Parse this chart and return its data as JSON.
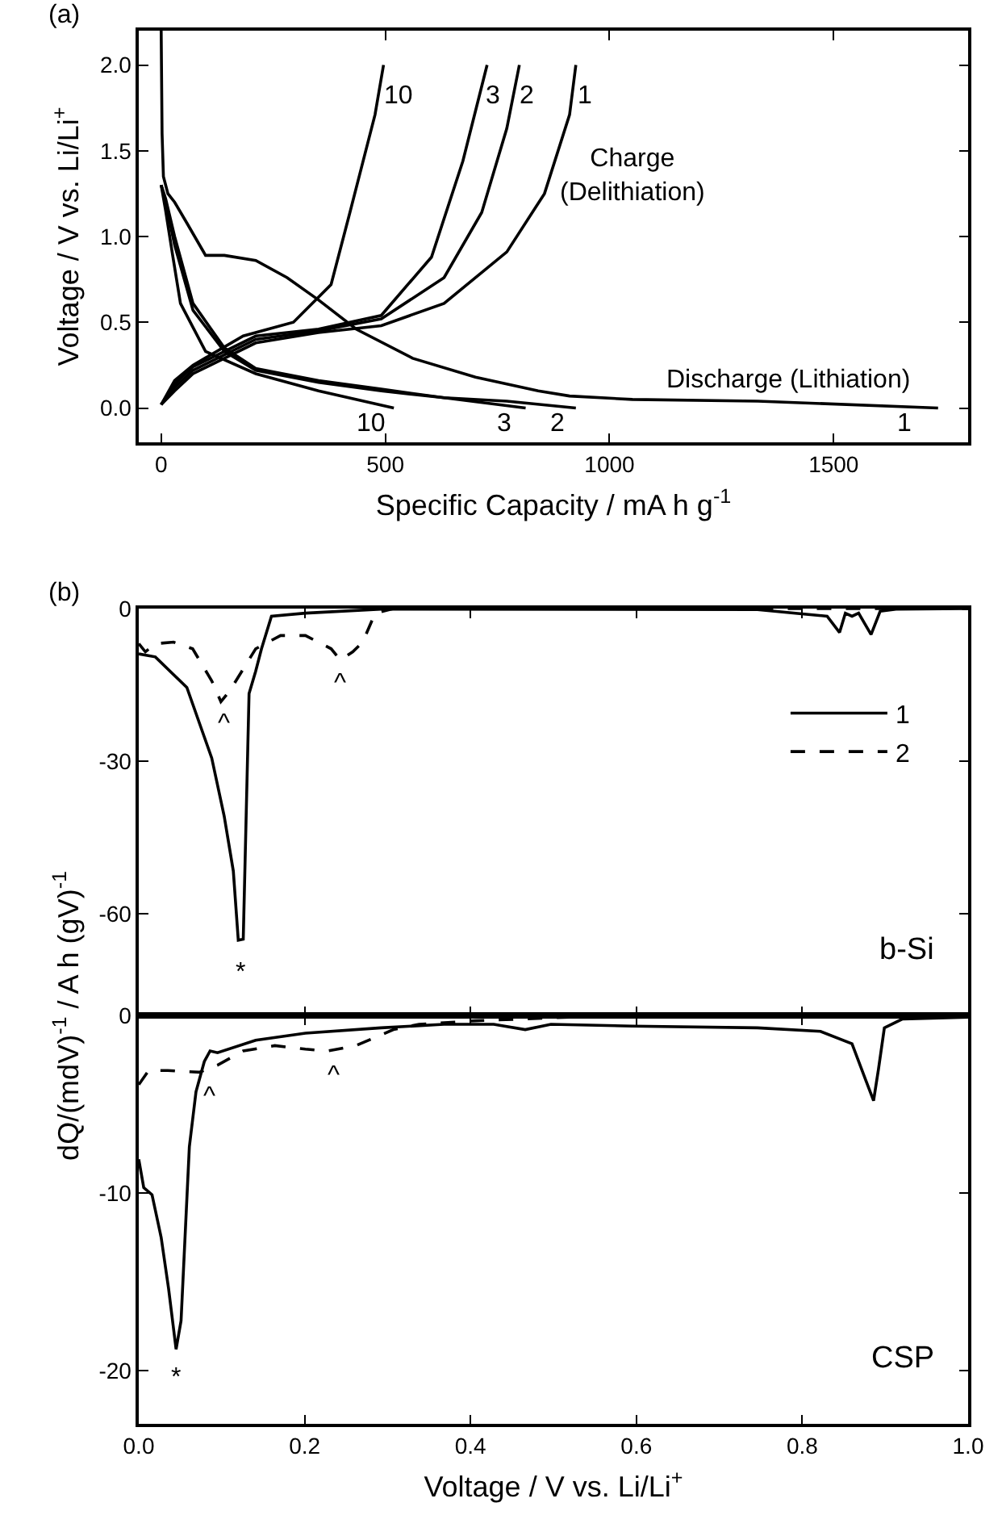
{
  "chart_data": [
    {
      "type": "line",
      "xlabel": "Specific Capacity / mA h g$^{-1}$",
      "ylabel": "Voltage / V vs. Li/Li$^{+}$",
      "xlim": [
        -50,
        1800
      ],
      "ylim": [
        -0.2,
        2.2
      ],
      "xticks": [
        0,
        500,
        1000,
        1500
      ],
      "yticks": [
        {
          "value": 0,
          "label": "0.0"
        },
        {
          "value": 0.5,
          "label": "0.5"
        },
        {
          "value": 1,
          "label": "1.0"
        },
        {
          "value": 1.5,
          "label": "1.5"
        },
        {
          "value": 2,
          "label": "2.0"
        }
      ],
      "legend": false,
      "marker": "none",
      "line_style": "solid",
      "series": [
        {
          "color": "#000000",
          "x": [
            0,
            2,
            5,
            15,
            30,
            57,
            99,
            141,
            211,
            281,
            351,
            435,
            561,
            701,
            841,
            911,
            1051,
            1331,
            1733
          ],
          "values": [
            2.2,
            1.6,
            1.35,
            1.25,
            1.2,
            1.08,
            0.89,
            0.89,
            0.86,
            0.76,
            0.63,
            0.46,
            0.29,
            0.18,
            0.1,
            0.07,
            0.05,
            0.04,
            0.0
          ]
        },
        {
          "color": "#000000",
          "x": [
            0,
            10,
            30,
            71,
            141,
            211,
            351,
            491,
            631,
            771,
            925
          ],
          "values": [
            1.3,
            1.22,
            1.0,
            0.61,
            0.35,
            0.23,
            0.16,
            0.11,
            0.06,
            0.04,
            0.0
          ]
        },
        {
          "color": "#000000",
          "x": [
            0,
            10,
            30,
            71,
            141,
            211,
            351,
            491,
            631,
            813
          ],
          "values": [
            1.3,
            1.2,
            0.95,
            0.57,
            0.33,
            0.22,
            0.15,
            0.1,
            0.06,
            0.0
          ]
        },
        {
          "color": "#000000",
          "x": [
            0,
            10,
            25,
            43,
            99,
            211,
            351,
            519
          ],
          "values": [
            1.3,
            1.15,
            0.9,
            0.61,
            0.33,
            0.2,
            0.1,
            0.0
          ]
        },
        {
          "color": "#000000",
          "x": [
            0,
            30,
            71,
            211,
            351,
            491,
            631,
            771,
            855,
            911,
            925
          ],
          "values": [
            0.02,
            0.1,
            0.2,
            0.38,
            0.44,
            0.48,
            0.61,
            0.91,
            1.25,
            1.71,
            2.0
          ]
        },
        {
          "color": "#000000",
          "x": [
            0,
            30,
            71,
            211,
            351,
            491,
            631,
            715,
            771,
            799
          ],
          "values": [
            0.02,
            0.12,
            0.22,
            0.4,
            0.45,
            0.52,
            0.76,
            1.14,
            1.63,
            2.0
          ]
        },
        {
          "color": "#000000",
          "x": [
            0,
            30,
            71,
            211,
            351,
            491,
            603,
            673,
            727
          ],
          "values": [
            0.02,
            0.14,
            0.24,
            0.42,
            0.46,
            0.54,
            0.88,
            1.44,
            2.0
          ]
        },
        {
          "color": "#000000",
          "x": [
            0,
            30,
            71,
            183,
            295,
            379,
            421,
            477,
            496
          ],
          "values": [
            0.02,
            0.16,
            0.25,
            0.42,
            0.5,
            0.72,
            1.14,
            1.71,
            2.0
          ]
        }
      ],
      "annotations": [
        "(a)",
        "10",
        "3",
        "2",
        "1",
        "10",
        "3",
        "2",
        "1",
        "Charge\n(Delithiation)",
        "Discharge (Lithiation)"
      ]
    },
    {
      "type": "line",
      "ylabel": "dQ/(mdV)$^{-1}$ / A h (gV)$^{-1}$",
      "xlim": [
        0,
        1
      ],
      "ylim": [
        -80,
        0
      ],
      "xticks": [
        {
          "value": 0,
          "label": null
        },
        {
          "value": 0.2,
          "label": null
        },
        {
          "value": 0.4,
          "label": null
        },
        {
          "value": 0.6,
          "label": null
        },
        {
          "value": 0.8,
          "label": null
        },
        {
          "value": 1,
          "label": null
        }
      ],
      "yticks": [
        0,
        -30,
        -60
      ],
      "tick_labels": "y",
      "legend": "top right",
      "marker": "none",
      "series": [
        {
          "name": "1",
          "color": "#000000",
          "line_style": "solid",
          "x": [
            0,
            0.02,
            0.058,
            0.088,
            0.103,
            0.114,
            0.12,
            0.126,
            0.133,
            0.141,
            0.148,
            0.16,
            0.201,
            0.292,
            0.746,
            0.83,
            0.845,
            0.852,
            0.86,
            0.868,
            0.883,
            0.894,
            0.913,
            1.0
          ],
          "values": [
            -8.9,
            -9.5,
            -15.5,
            -29.4,
            -40.8,
            -51.6,
            -65.2,
            -65,
            -16.7,
            -12.3,
            -7.9,
            -1.5,
            -0.9,
            -0.1,
            -0.2,
            -1.5,
            -4.7,
            -0.9,
            -1.5,
            -0.9,
            -5.1,
            -0.5,
            -0.1,
            0
          ]
        },
        {
          "name": "2",
          "color": "#000000",
          "line_style": "dashed",
          "x": [
            0,
            0.008,
            0.02,
            0.042,
            0.065,
            0.088,
            0.099,
            0.11,
            0.141,
            0.171,
            0.201,
            0.232,
            0.243,
            0.258,
            0.27,
            0.285,
            0.307,
            1.0
          ],
          "values": [
            -6.9,
            -8.5,
            -6.9,
            -6.6,
            -7.9,
            -14.2,
            -18.3,
            -16.1,
            -7.9,
            -5.3,
            -5.3,
            -7.9,
            -10.1,
            -8.5,
            -6.6,
            -0.9,
            0,
            0
          ]
        }
      ],
      "annotations": [
        "(b)",
        "b-Si",
        "^",
        "^",
        "*"
      ]
    },
    {
      "type": "line",
      "xlabel": "Voltage / V vs. Li/Li$^{+}$",
      "xlim": [
        0,
        1
      ],
      "ylim": [
        -23,
        0
      ],
      "xticks": [
        {
          "value": 0,
          "label": "0.0"
        },
        {
          "value": 0.2,
          "label": "0.2"
        },
        {
          "value": 0.4,
          "label": "0.4"
        },
        {
          "value": 0.6,
          "label": "0.6"
        },
        {
          "value": 0.8,
          "label": "0.8"
        },
        {
          "value": 1,
          "label": "1.0"
        }
      ],
      "yticks": [
        0,
        -10,
        -20
      ],
      "legend": false,
      "marker": "none",
      "series": [
        {
          "color": "#000000",
          "line_style": "solid",
          "x": [
            0,
            0.006,
            0.016,
            0.027,
            0.036,
            0.045,
            0.051,
            0.061,
            0.069,
            0.079,
            0.086,
            0.095,
            0.141,
            0.201,
            0.292,
            0.368,
            0.428,
            0.466,
            0.497,
            0.595,
            0.746,
            0.822,
            0.86,
            0.877,
            0.886,
            0.892,
            0.899,
            0.921,
            1.0
          ],
          "values": [
            -8.1,
            -9.7,
            -10.1,
            -12.5,
            -15.4,
            -18.8,
            -17.2,
            -7.4,
            -4.3,
            -2.6,
            -2.0,
            -2.1,
            -1.4,
            -1.0,
            -0.7,
            -0.5,
            -0.5,
            -0.8,
            -0.5,
            -0.6,
            -0.7,
            -0.9,
            -1.6,
            -3.7,
            -4.8,
            -3.0,
            -0.7,
            -0.2,
            -0.1
          ]
        },
        {
          "color": "#000000",
          "line_style": "dashed",
          "x": [
            0,
            0.012,
            0.035,
            0.073,
            0.095,
            0.126,
            0.164,
            0.201,
            0.228,
            0.262,
            0.307,
            0.338,
            0.406,
            0.519,
            1.0
          ],
          "values": [
            -3.9,
            -3.1,
            -3.1,
            -3.2,
            -2.8,
            -2.0,
            -1.7,
            -1.9,
            -2.0,
            -1.7,
            -0.8,
            -0.5,
            -0.3,
            -0.1,
            0.0
          ]
        }
      ],
      "annotations": [
        "CSP",
        "^",
        "^",
        "*"
      ]
    }
  ]
}
